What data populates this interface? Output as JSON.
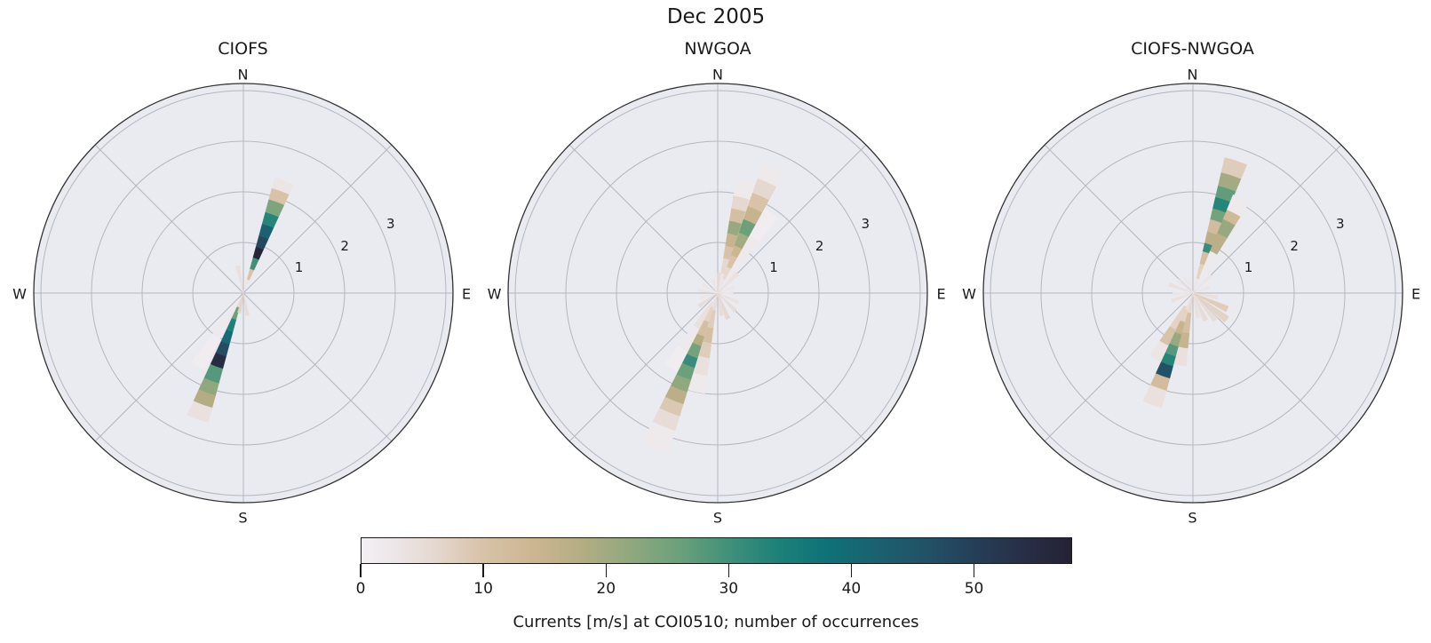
{
  "chart_data": {
    "type": "bar",
    "subtype": "polar_rose_histogram",
    "title": "Dec 2005",
    "legend_position": "horizontal colorbar, bottom center",
    "grid": true,
    "compass": [
      "N",
      "E",
      "S",
      "W"
    ],
    "radial_axis": {
      "units": "m/s (current speed)",
      "ticks": [
        1,
        2,
        3
      ],
      "gridlines": [
        1,
        2,
        3,
        4
      ],
      "rmax": 4.14,
      "tick_label_angle_deg": 65
    },
    "angular_axis": {
      "spoke_step_deg": 45,
      "petal_width_deg": 9.6
    },
    "colorbar": {
      "label": "Currents [m/s] at COI0510; number of occurrences",
      "ticks": [
        0,
        10,
        20,
        30,
        40,
        50
      ],
      "vmin": 0,
      "vmax": 58,
      "colormap_stops": [
        [
          0,
          "#f3f0f4"
        ],
        [
          3,
          "#ece5e6"
        ],
        [
          6,
          "#e5d8cf"
        ],
        [
          10,
          "#d8c2a8"
        ],
        [
          14,
          "#ccb691"
        ],
        [
          18,
          "#b4ad83"
        ],
        [
          22,
          "#90a87e"
        ],
        [
          26,
          "#6ba07b"
        ],
        [
          30,
          "#41907a"
        ],
        [
          34,
          "#1d8178"
        ],
        [
          38,
          "#0e7277"
        ],
        [
          42,
          "#1b6170"
        ],
        [
          46,
          "#225266"
        ],
        [
          50,
          "#253f58"
        ],
        [
          54,
          "#272f46"
        ],
        [
          58,
          "#262134"
        ]
      ]
    },
    "style": {
      "axes_bg": "#eaeaf1",
      "grid_color": "#b6b6bf",
      "edge_color": "#333333"
    },
    "subplots": [
      {
        "title": "CIOFS",
        "petals": [
          {
            "dir": 20,
            "segments": [
              [
                0,
                0.28,
                3
              ],
              [
                0.28,
                0.5,
                10
              ],
              [
                0.5,
                0.73,
                30
              ],
              [
                0.73,
                0.95,
                57
              ],
              [
                0.95,
                1.18,
                48
              ],
              [
                1.18,
                1.42,
                42
              ],
              [
                1.42,
                1.66,
                33
              ],
              [
                1.66,
                1.92,
                24
              ],
              [
                1.92,
                2.15,
                10
              ],
              [
                2.15,
                2.36,
                3
              ]
            ]
          },
          {
            "dir": 200,
            "segments": [
              [
                0,
                0.3,
                6
              ],
              [
                0.3,
                0.55,
                26
              ],
              [
                0.55,
                0.8,
                34
              ],
              [
                0.8,
                1.05,
                40
              ],
              [
                1.05,
                1.3,
                47
              ],
              [
                1.3,
                1.55,
                55
              ],
              [
                1.55,
                1.85,
                28
              ],
              [
                1.85,
                2.1,
                22
              ],
              [
                2.1,
                2.35,
                18
              ],
              [
                2.35,
                2.65,
                4
              ]
            ]
          },
          {
            "dir": 348,
            "segments": [
              [
                0,
                0.55,
                4
              ]
            ]
          },
          {
            "dir": 170,
            "segments": [
              [
                0,
                0.45,
                5
              ]
            ]
          },
          {
            "dir": 192,
            "segments": [
              [
                0,
                0.4,
                7
              ]
            ]
          },
          {
            "dir": 212,
            "segments": [
              [
                0.2,
                1.0,
                2
              ],
              [
                1.0,
                1.7,
                1
              ]
            ]
          },
          {
            "dir": 300,
            "segments": [
              [
                0,
                0.3,
                2
              ]
            ]
          }
        ]
      },
      {
        "title": "NWGOA",
        "petals": [
          {
            "dir": 24,
            "segments": [
              [
                0,
                0.3,
                3
              ],
              [
                0.3,
                0.55,
                6
              ],
              [
                0.55,
                0.8,
                10
              ],
              [
                0.8,
                1.0,
                14
              ],
              [
                1.0,
                1.27,
                20
              ],
              [
                1.27,
                1.55,
                26
              ],
              [
                1.55,
                1.82,
                15
              ],
              [
                1.82,
                2.1,
                10
              ],
              [
                2.1,
                2.4,
                6
              ],
              [
                2.4,
                2.7,
                2
              ]
            ]
          },
          {
            "dir": 14,
            "segments": [
              [
                0,
                0.4,
                3
              ],
              [
                0.4,
                0.7,
                6
              ],
              [
                0.7,
                0.95,
                10
              ],
              [
                0.95,
                1.2,
                15
              ],
              [
                1.2,
                1.45,
                21
              ],
              [
                1.45,
                1.7,
                11
              ],
              [
                1.7,
                1.95,
                6
              ],
              [
                1.95,
                2.3,
                2
              ]
            ]
          },
          {
            "dir": 34,
            "segments": [
              [
                0.3,
                1.3,
                2
              ],
              [
                1.3,
                1.9,
                1
              ]
            ]
          },
          {
            "dir": 3,
            "segments": [
              [
                0,
                0.4,
                6
              ]
            ]
          },
          {
            "dir": 202,
            "segments": [
              [
                0,
                0.3,
                4
              ],
              [
                0.3,
                0.6,
                7
              ],
              [
                0.6,
                0.9,
                11
              ],
              [
                0.9,
                1.1,
                18
              ],
              [
                1.1,
                1.35,
                25
              ],
              [
                1.35,
                1.55,
                31
              ],
              [
                1.55,
                1.8,
                26
              ],
              [
                1.8,
                2.05,
                22
              ],
              [
                2.05,
                2.3,
                17
              ],
              [
                2.3,
                2.55,
                9
              ],
              [
                2.55,
                2.85,
                5
              ],
              [
                2.85,
                3.3,
                2
              ]
            ]
          },
          {
            "dir": 192,
            "segments": [
              [
                0,
                0.35,
                5
              ],
              [
                0.35,
                0.7,
                8
              ],
              [
                0.7,
                1.0,
                11
              ],
              [
                1.0,
                1.3,
                8
              ],
              [
                1.3,
                1.65,
                4
              ],
              [
                1.65,
                2.0,
                2
              ]
            ]
          },
          {
            "dir": 212,
            "segments": [
              [
                0.2,
                0.8,
                4
              ],
              [
                0.8,
                1.3,
                2
              ],
              [
                1.3,
                1.75,
                1
              ]
            ]
          },
          {
            "dir": 45,
            "segments": [
              [
                0,
                0.55,
                4
              ]
            ]
          },
          {
            "dir": 70,
            "segments": [
              [
                0,
                0.35,
                3
              ]
            ]
          },
          {
            "dir": 90,
            "segments": [
              [
                0,
                0.3,
                3
              ]
            ]
          },
          {
            "dir": 115,
            "segments": [
              [
                0,
                0.45,
                4
              ]
            ]
          },
          {
            "dir": 135,
            "segments": [
              [
                0,
                0.5,
                5
              ]
            ]
          },
          {
            "dir": 158,
            "segments": [
              [
                0,
                0.55,
                6
              ]
            ]
          },
          {
            "dir": 170,
            "segments": [
              [
                0,
                0.45,
                5
              ]
            ]
          },
          {
            "dir": 235,
            "segments": [
              [
                0,
                0.45,
                5
              ]
            ]
          },
          {
            "dir": 255,
            "segments": [
              [
                0,
                0.35,
                3
              ]
            ]
          },
          {
            "dir": 278,
            "segments": [
              [
                0,
                0.4,
                3
              ]
            ]
          },
          {
            "dir": 300,
            "segments": [
              [
                0,
                0.35,
                3
              ]
            ]
          },
          {
            "dir": 322,
            "segments": [
              [
                0,
                0.3,
                2
              ]
            ]
          },
          {
            "dir": 340,
            "segments": [
              [
                0,
                0.3,
                3
              ]
            ]
          }
        ]
      },
      {
        "title": "CIOFS-NWGOA",
        "petals": [
          {
            "dir": 18,
            "segments": [
              [
                0,
                0.3,
                3
              ],
              [
                0.3,
                0.6,
                7
              ],
              [
                0.6,
                0.85,
                11
              ],
              [
                0.85,
                1.02,
                31
              ],
              [
                1.02,
                1.25,
                17
              ],
              [
                1.25,
                1.5,
                12
              ],
              [
                1.5,
                1.72,
                25
              ],
              [
                1.72,
                1.95,
                33
              ],
              [
                1.95,
                2.18,
                27
              ],
              [
                2.18,
                2.45,
                20
              ],
              [
                2.45,
                2.75,
                8
              ]
            ]
          },
          {
            "dir": 27,
            "segments": [
              [
                0.35,
                0.9,
                2
              ],
              [
                0.9,
                1.28,
                17
              ],
              [
                1.28,
                1.58,
                21
              ],
              [
                1.58,
                1.78,
                13
              ],
              [
                1.78,
                2.1,
                2
              ]
            ]
          },
          {
            "dir": 200,
            "segments": [
              [
                0,
                0.35,
                4
              ],
              [
                0.35,
                0.6,
                7
              ],
              [
                0.6,
                0.85,
                15
              ],
              [
                0.85,
                1.1,
                21
              ],
              [
                1.1,
                1.3,
                28
              ],
              [
                1.3,
                1.5,
                33
              ],
              [
                1.5,
                1.75,
                46
              ],
              [
                1.75,
                2.0,
                12
              ],
              [
                2.0,
                2.35,
                4
              ]
            ]
          },
          {
            "dir": 190,
            "segments": [
              [
                0,
                0.4,
                6
              ],
              [
                0.4,
                0.8,
                11
              ],
              [
                0.8,
                1.1,
                15
              ],
              [
                1.1,
                1.45,
                4
              ]
            ]
          },
          {
            "dir": 210,
            "segments": [
              [
                0.3,
                0.8,
                7
              ],
              [
                0.8,
                1.15,
                10
              ],
              [
                1.15,
                1.5,
                3
              ]
            ]
          },
          {
            "dir": 100,
            "segments": [
              [
                0,
                0.5,
                4
              ]
            ]
          },
          {
            "dir": 115,
            "segments": [
              [
                0,
                0.75,
                8
              ]
            ]
          },
          {
            "dir": 128,
            "segments": [
              [
                0,
                0.85,
                7
              ]
            ]
          },
          {
            "dir": 140,
            "segments": [
              [
                0,
                0.7,
                5
              ]
            ]
          },
          {
            "dir": 155,
            "segments": [
              [
                0,
                0.6,
                5
              ]
            ]
          },
          {
            "dir": 168,
            "segments": [
              [
                0,
                0.5,
                4
              ]
            ]
          },
          {
            "dir": 45,
            "segments": [
              [
                0,
                0.5,
                3
              ]
            ]
          },
          {
            "dir": 70,
            "segments": [
              [
                0,
                0.35,
                3
              ]
            ]
          },
          {
            "dir": 250,
            "segments": [
              [
                0,
                0.45,
                4
              ]
            ]
          },
          {
            "dir": 268,
            "segments": [
              [
                0,
                0.4,
                3
              ]
            ]
          },
          {
            "dir": 290,
            "segments": [
              [
                0,
                0.5,
                4
              ]
            ]
          },
          {
            "dir": 310,
            "segments": [
              [
                0,
                0.4,
                3
              ]
            ]
          },
          {
            "dir": 330,
            "segments": [
              [
                0,
                0.35,
                3
              ]
            ]
          },
          {
            "dir": 345,
            "segments": [
              [
                0,
                0.3,
                3
              ]
            ]
          }
        ]
      }
    ]
  }
}
